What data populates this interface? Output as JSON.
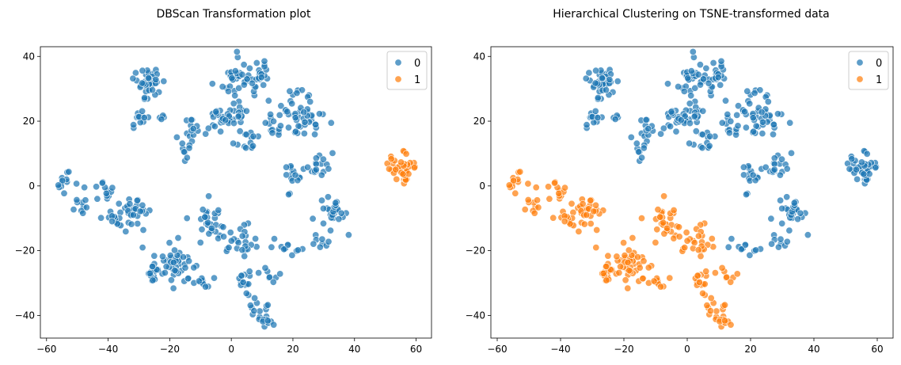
{
  "chart_data": [
    {
      "type": "scatter",
      "title": "DBScan Transformation plot",
      "xlabel": "",
      "ylabel": "",
      "xlim": [
        -62,
        65
      ],
      "ylim": [
        -47,
        43
      ],
      "xticks": [
        -60,
        -40,
        -20,
        0,
        20,
        40,
        60
      ],
      "xtick_labels": [
        "−60",
        "−40",
        "−20",
        "0",
        "20",
        "40",
        "60"
      ],
      "yticks": [
        -40,
        -20,
        0,
        20,
        40
      ],
      "ytick_labels": [
        "−40",
        "−20",
        "0",
        "20",
        "40"
      ],
      "legend": {
        "placement": "top-right",
        "entries": [
          "0",
          "1"
        ]
      },
      "grid": false,
      "colors": {
        "0": "#1f77b4",
        "1": "#ff7f0e"
      },
      "clusters": [
        {
          "center": [
            -27,
            31
          ],
          "n": 45,
          "spread": 2.5,
          "label": 0
        },
        {
          "center": [
            -30,
            20
          ],
          "n": 12,
          "spread": 1.4,
          "label": 0
        },
        {
          "center": [
            -22,
            21
          ],
          "n": 4,
          "spread": 0.6,
          "label": 0
        },
        {
          "center": [
            2,
            33
          ],
          "n": 45,
          "spread": 3.5,
          "label": 0
        },
        {
          "center": [
            10,
            35
          ],
          "n": 15,
          "spread": 2.5,
          "label": 0
        },
        {
          "center": [
            0,
            22
          ],
          "n": 30,
          "spread": 2.5,
          "label": 0
        },
        {
          "center": [
            -5,
            20
          ],
          "n": 10,
          "spread": 1.5,
          "label": 0
        },
        {
          "center": [
            5,
            14
          ],
          "n": 15,
          "spread": 2,
          "label": 0
        },
        {
          "center": [
            -13,
            17
          ],
          "n": 14,
          "spread": 1.8,
          "label": 0
        },
        {
          "center": [
            -15,
            11
          ],
          "n": 8,
          "spread": 1.3,
          "label": 0
        },
        {
          "center": [
            22,
            22
          ],
          "n": 50,
          "spread": 4,
          "label": 0
        },
        {
          "center": [
            13,
            18
          ],
          "n": 10,
          "spread": 1.5,
          "label": 0
        },
        {
          "center": [
            28,
            7
          ],
          "n": 18,
          "spread": 2.5,
          "label": 0
        },
        {
          "center": [
            20,
            4
          ],
          "n": 12,
          "spread": 1.8,
          "label": 0
        },
        {
          "center": [
            -54,
            1
          ],
          "n": 12,
          "spread": 1.4,
          "label": 0
        },
        {
          "center": [
            -49,
            -5
          ],
          "n": 10,
          "spread": 1.5,
          "label": 0
        },
        {
          "center": [
            -42,
            -2
          ],
          "n": 12,
          "spread": 1.8,
          "label": 0
        },
        {
          "center": [
            -32,
            -8
          ],
          "n": 35,
          "spread": 2.5,
          "label": 0
        },
        {
          "center": [
            -38,
            -9
          ],
          "n": 8,
          "spread": 1.5,
          "label": 0
        },
        {
          "center": [
            -7,
            -12
          ],
          "n": 30,
          "spread": 3,
          "label": 0
        },
        {
          "center": [
            2,
            -17
          ],
          "n": 25,
          "spread": 3,
          "label": 0
        },
        {
          "center": [
            -18,
            -25
          ],
          "n": 45,
          "spread": 3.5,
          "label": 0
        },
        {
          "center": [
            -25,
            -27
          ],
          "n": 15,
          "spread": 1.5,
          "label": 0
        },
        {
          "center": [
            -9,
            -30
          ],
          "n": 10,
          "spread": 1.5,
          "label": 0
        },
        {
          "center": [
            5,
            -30
          ],
          "n": 15,
          "spread": 2,
          "label": 0
        },
        {
          "center": [
            9,
            -38
          ],
          "n": 12,
          "spread": 2,
          "label": 0
        },
        {
          "center": [
            12,
            -42
          ],
          "n": 10,
          "spread": 1.2,
          "label": 0
        },
        {
          "center": [
            12,
            -27
          ],
          "n": 8,
          "spread": 1.5,
          "label": 0
        },
        {
          "center": [
            18,
            -20
          ],
          "n": 12,
          "spread": 1.8,
          "label": 0
        },
        {
          "center": [
            29,
            -18
          ],
          "n": 8,
          "spread": 2,
          "label": 0
        },
        {
          "center": [
            34,
            -9
          ],
          "n": 20,
          "spread": 2.5,
          "label": 0
        },
        {
          "center": [
            32,
            -5
          ],
          "n": 6,
          "spread": 1.5,
          "label": 0
        },
        {
          "center": [
            19,
            -2
          ],
          "n": 2,
          "spread": 0.5,
          "label": 0
        },
        {
          "center": [
            55,
            5
          ],
          "n": 45,
          "spread": 2.5,
          "label": 1
        }
      ]
    },
    {
      "type": "scatter",
      "title": "Hierarchical Clustering on TSNE-transformed data",
      "xlabel": "",
      "ylabel": "",
      "xlim": [
        -62,
        65
      ],
      "ylim": [
        -47,
        43
      ],
      "xticks": [
        -60,
        -40,
        -20,
        0,
        20,
        40,
        60
      ],
      "xtick_labels": [
        "−60",
        "−40",
        "−20",
        "0",
        "20",
        "40",
        "60"
      ],
      "yticks": [
        -40,
        -20,
        0,
        20,
        40
      ],
      "ytick_labels": [
        "−40",
        "−20",
        "0",
        "20",
        "40"
      ],
      "legend": {
        "placement": "top-right",
        "entries": [
          "0",
          "1"
        ]
      },
      "grid": false,
      "colors": {
        "0": "#1f77b4",
        "1": "#ff7f0e"
      },
      "clusters": [
        {
          "center": [
            -27,
            31
          ],
          "n": 45,
          "spread": 2.5,
          "label": 0
        },
        {
          "center": [
            -30,
            20
          ],
          "n": 12,
          "spread": 1.4,
          "label": 0
        },
        {
          "center": [
            -22,
            21
          ],
          "n": 4,
          "spread": 0.6,
          "label": 0
        },
        {
          "center": [
            2,
            33
          ],
          "n": 45,
          "spread": 3.5,
          "label": 0
        },
        {
          "center": [
            10,
            35
          ],
          "n": 15,
          "spread": 2.5,
          "label": 0
        },
        {
          "center": [
            0,
            22
          ],
          "n": 30,
          "spread": 2.5,
          "label": 0
        },
        {
          "center": [
            -5,
            20
          ],
          "n": 10,
          "spread": 1.5,
          "label": 0
        },
        {
          "center": [
            5,
            14
          ],
          "n": 15,
          "spread": 2,
          "label": 0
        },
        {
          "center": [
            -13,
            17
          ],
          "n": 14,
          "spread": 1.8,
          "label": 0
        },
        {
          "center": [
            -15,
            11
          ],
          "n": 8,
          "spread": 1.3,
          "label": 0
        },
        {
          "center": [
            22,
            22
          ],
          "n": 50,
          "spread": 4,
          "label": 0
        },
        {
          "center": [
            13,
            18
          ],
          "n": 10,
          "spread": 1.5,
          "label": 0
        },
        {
          "center": [
            28,
            7
          ],
          "n": 18,
          "spread": 2.5,
          "label": 0
        },
        {
          "center": [
            20,
            4
          ],
          "n": 12,
          "spread": 1.8,
          "label": 0
        },
        {
          "center": [
            -54,
            1
          ],
          "n": 12,
          "spread": 1.4,
          "label": 1
        },
        {
          "center": [
            -49,
            -5
          ],
          "n": 10,
          "spread": 1.5,
          "label": 1
        },
        {
          "center": [
            -42,
            -2
          ],
          "n": 12,
          "spread": 1.8,
          "label": 1
        },
        {
          "center": [
            -32,
            -8
          ],
          "n": 35,
          "spread": 2.5,
          "label": 1
        },
        {
          "center": [
            -38,
            -9
          ],
          "n": 8,
          "spread": 1.5,
          "label": 1
        },
        {
          "center": [
            -7,
            -12
          ],
          "n": 30,
          "spread": 3,
          "label": 1
        },
        {
          "center": [
            2,
            -17
          ],
          "n": 25,
          "spread": 3,
          "label": 1
        },
        {
          "center": [
            -18,
            -25
          ],
          "n": 45,
          "spread": 3.5,
          "label": 1
        },
        {
          "center": [
            -25,
            -27
          ],
          "n": 15,
          "spread": 1.5,
          "label": 1
        },
        {
          "center": [
            -9,
            -30
          ],
          "n": 10,
          "spread": 1.5,
          "label": 1
        },
        {
          "center": [
            5,
            -30
          ],
          "n": 15,
          "spread": 2,
          "label": 1
        },
        {
          "center": [
            9,
            -38
          ],
          "n": 12,
          "spread": 2,
          "label": 1
        },
        {
          "center": [
            12,
            -42
          ],
          "n": 10,
          "spread": 1.2,
          "label": 1
        },
        {
          "center": [
            12,
            -27
          ],
          "n": 8,
          "spread": 1.5,
          "label": 1
        },
        {
          "center": [
            18,
            -20
          ],
          "n": 12,
          "spread": 1.8,
          "label": 0
        },
        {
          "center": [
            29,
            -18
          ],
          "n": 8,
          "spread": 2,
          "label": 0
        },
        {
          "center": [
            34,
            -9
          ],
          "n": 20,
          "spread": 2.5,
          "label": 0
        },
        {
          "center": [
            32,
            -5
          ],
          "n": 6,
          "spread": 1.5,
          "label": 0
        },
        {
          "center": [
            19,
            -2
          ],
          "n": 2,
          "spread": 0.5,
          "label": 0
        },
        {
          "center": [
            55,
            5
          ],
          "n": 45,
          "spread": 2.5,
          "label": 0
        }
      ]
    }
  ]
}
